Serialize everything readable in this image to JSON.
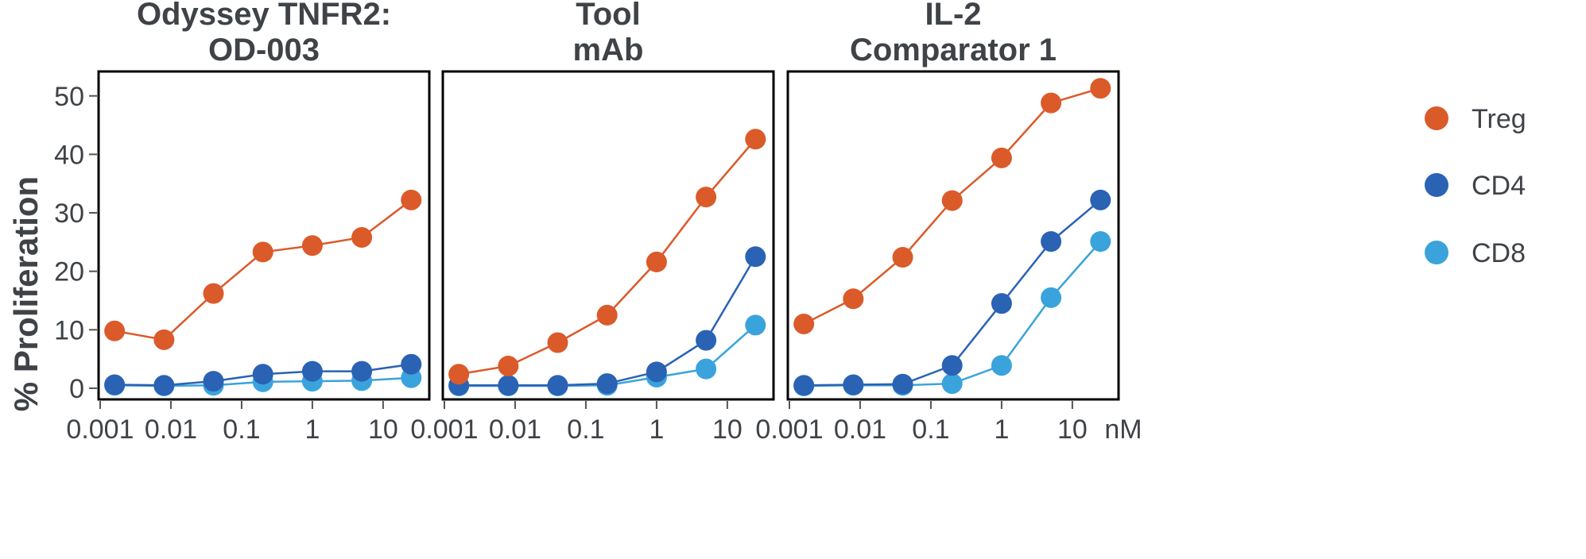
{
  "chart_data": {
    "type": "line",
    "ylabel": "% Proliferation",
    "x_unit": "nM",
    "x_scale": "log",
    "x_ticks": [
      0.001,
      0.01,
      0.1,
      1,
      10
    ],
    "x_tick_labels": [
      "0.001",
      "0.01",
      "0.1",
      "1",
      "10"
    ],
    "y_ticks": [
      0,
      10,
      20,
      30,
      40,
      50
    ],
    "y_tick_labels": [
      "0",
      "10",
      "20",
      "30",
      "40",
      "50"
    ],
    "ylim": [
      -1.5,
      53.5
    ],
    "xlim": [
      0.00095,
      45
    ],
    "x": [
      0.0016,
      0.008,
      0.04,
      0.2,
      1,
      5,
      25
    ],
    "legend": {
      "placement": "right",
      "entries": [
        "Treg",
        "CD4",
        "CD8"
      ]
    },
    "colors": {
      "Treg": "#db5a2a",
      "CD4": "#2a62b4",
      "CD8": "#3aa3dc"
    },
    "panels": [
      {
        "title_lines": [
          "Odyssey TNFR2:",
          "OD-003"
        ],
        "series": [
          {
            "name": "Treg",
            "values": [
              9.8,
              8.3,
              16.2,
              23.3,
              24.4,
              25.8,
              32.2
            ]
          },
          {
            "name": "CD4",
            "values": [
              0.6,
              0.5,
              1.2,
              2.4,
              2.9,
              2.9,
              4.1
            ]
          },
          {
            "name": "CD8",
            "values": [
              0.5,
              0.4,
              0.5,
              1.1,
              1.2,
              1.3,
              1.8
            ]
          }
        ]
      },
      {
        "title_lines": [
          "Tool",
          "mAb"
        ],
        "series": [
          {
            "name": "Treg",
            "values": [
              2.4,
              3.8,
              7.8,
              12.5,
              21.6,
              32.7,
              42.6
            ]
          },
          {
            "name": "CD4",
            "values": [
              0.5,
              0.5,
              0.5,
              0.8,
              2.8,
              8.2,
              22.5
            ]
          },
          {
            "name": "CD8",
            "values": [
              0.4,
              0.4,
              0.4,
              0.5,
              1.9,
              3.3,
              10.8
            ]
          }
        ]
      },
      {
        "title_lines": [
          "IL-2",
          "Comparator 1"
        ],
        "series": [
          {
            "name": "Treg",
            "values": [
              11.0,
              15.3,
              22.4,
              32.1,
              39.4,
              48.8,
              51.3
            ]
          },
          {
            "name": "CD4",
            "values": [
              0.5,
              0.6,
              0.7,
              3.9,
              14.5,
              25.1,
              32.2
            ]
          },
          {
            "name": "CD8",
            "values": [
              0.4,
              0.5,
              0.5,
              0.8,
              3.9,
              15.5,
              25.1
            ]
          }
        ]
      }
    ]
  }
}
